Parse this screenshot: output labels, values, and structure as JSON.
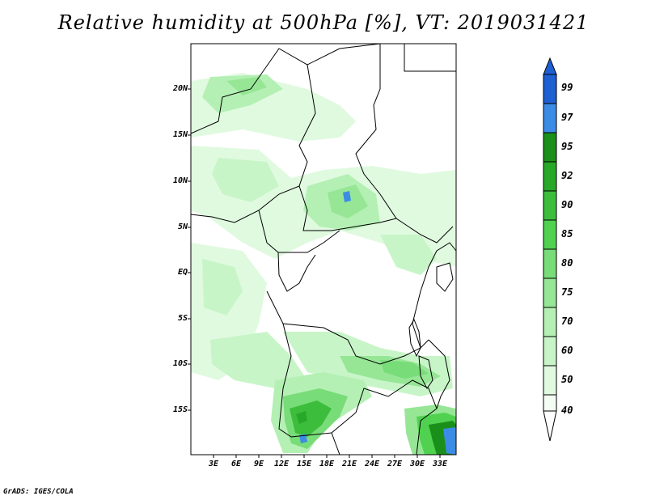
{
  "map": {
    "title": "Relative humidity at 500hPa [%], VT: 2019031421",
    "footer": "GrADS: IGES/COLA",
    "lat_labels": [
      "20N",
      "15N",
      "10N",
      "5N",
      "EQ",
      "5S",
      "10S",
      "15S"
    ],
    "lon_labels": [
      "3E",
      "6E",
      "9E",
      "12E",
      "15E",
      "18E",
      "21E",
      "24E",
      "27E",
      "30E",
      "33E"
    ],
    "colorbar": {
      "labels": [
        "99",
        "97",
        "95",
        "92",
        "90",
        "85",
        "80",
        "75",
        "70",
        "60",
        "50",
        "40"
      ],
      "colors": [
        "#1e5fd2",
        "#3c8ce6",
        "#1a8f1a",
        "#28a828",
        "#3cbe3c",
        "#50d250",
        "#78dc78",
        "#96e696",
        "#b4f0b4",
        "#c8f5c8",
        "#e0fae0"
      ]
    }
  }
}
